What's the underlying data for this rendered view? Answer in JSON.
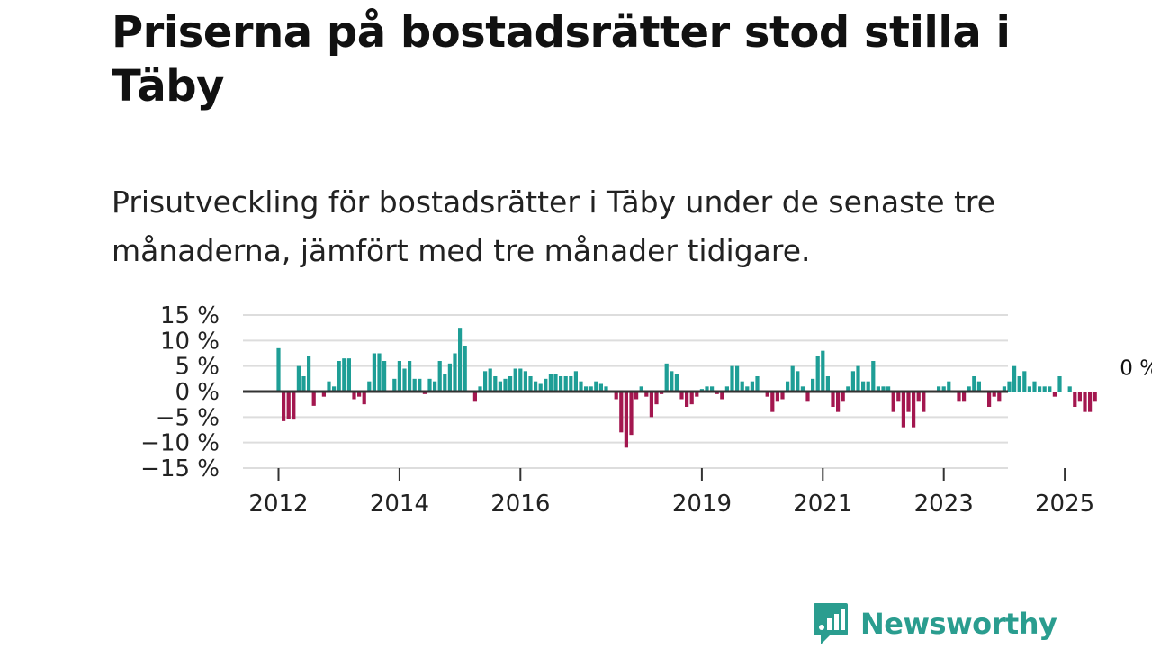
{
  "title": "Priserna på bostadsrätter stod stilla i Täby",
  "subtitle": "Prisutveckling för bostadsrätter i Täby under de senaste tre månaderna, jämfört med tre månader tidigare.",
  "brand": {
    "name": "Newsworthy",
    "color": "#2a9d8f",
    "icon": "newsworthy-logo-icon"
  },
  "chart_data": {
    "type": "bar",
    "title": "",
    "xlabel": "",
    "ylabel": "",
    "ylim": [
      -15,
      15
    ],
    "y_ticks": [
      15,
      10,
      5,
      0,
      -5,
      -10,
      -15
    ],
    "y_tick_labels": [
      "15 %",
      "10 %",
      "5 %",
      "0 %",
      "−5 %",
      "−10 %",
      "−15 %"
    ],
    "x_ticks": [
      "2012",
      "2014",
      "2016",
      "2019",
      "2021",
      "2023",
      "2025"
    ],
    "x_tick_months": [
      0,
      24,
      48,
      84,
      108,
      132,
      156
    ],
    "start": "2012-01",
    "end_label": "0 %",
    "colors": {
      "positive": "#1e9e96",
      "negative": "#a3174f",
      "zero_line": "#333333",
      "grid": "#dddddd"
    },
    "values": [
      8.5,
      -5.8,
      -5.4,
      -5.5,
      5,
      3,
      7,
      -2.8,
      0,
      -1,
      2,
      1,
      6,
      6.5,
      6.5,
      -1.5,
      -1,
      -2.5,
      2,
      7.5,
      7.5,
      6,
      0,
      2.5,
      6,
      4.5,
      6,
      2.5,
      2.5,
      -0.5,
      2.5,
      2,
      6,
      3.5,
      5.5,
      7.5,
      12.5,
      9,
      0,
      -2,
      1,
      4,
      4.5,
      3,
      2,
      2.5,
      3,
      4.5,
      4.5,
      4,
      3,
      2,
      1.5,
      2.5,
      3.5,
      3.5,
      3,
      3,
      3,
      4,
      2,
      1,
      1,
      2,
      1.5,
      1,
      0,
      -1.5,
      -8,
      -11,
      -8.5,
      -1.5,
      1,
      -1,
      -5,
      -2.5,
      -0.5,
      5.5,
      4,
      3.5,
      -1.5,
      -3,
      -2.5,
      -1,
      0.5,
      1,
      1,
      -0.5,
      -1.5,
      1,
      5,
      5,
      2,
      1,
      2,
      3,
      0,
      -1,
      -4,
      -2,
      -1.5,
      2,
      5,
      4,
      1,
      -2,
      2.5,
      7,
      8,
      3,
      -3,
      -4,
      -2,
      1,
      4,
      5,
      2,
      2,
      6,
      1,
      1,
      1,
      -4,
      -2,
      -7,
      -4,
      -7,
      -2,
      -4,
      0,
      0,
      1,
      1,
      2,
      0,
      -2,
      -2,
      1,
      3,
      2,
      0,
      -3,
      -1,
      -2,
      1,
      2,
      5,
      3,
      4,
      1,
      2,
      1,
      1,
      1,
      -1,
      3,
      0,
      1,
      -3,
      -2,
      -4,
      -4,
      -2,
      0
    ]
  }
}
